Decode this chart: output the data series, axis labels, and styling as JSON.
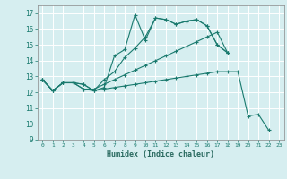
{
  "xlabel": "Humidex (Indice chaleur)",
  "bg_color": "#d6eef0",
  "grid_color": "#ffffff",
  "line_color": "#1a7a6e",
  "xlim": [
    -0.5,
    23.5
  ],
  "ylim": [
    9,
    17.5
  ],
  "yticks": [
    9,
    10,
    11,
    12,
    13,
    14,
    15,
    16,
    17
  ],
  "xticks": [
    0,
    1,
    2,
    3,
    4,
    5,
    6,
    7,
    8,
    9,
    10,
    11,
    12,
    13,
    14,
    15,
    16,
    17,
    18,
    19,
    20,
    21,
    22,
    23
  ],
  "series1_x": [
    0,
    1,
    2,
    3,
    4,
    5,
    6,
    7,
    8,
    9,
    10,
    11,
    12,
    13,
    14,
    15,
    16,
    17,
    18
  ],
  "series1_y": [
    12.8,
    12.1,
    12.6,
    12.6,
    12.5,
    12.1,
    12.3,
    14.3,
    14.7,
    16.9,
    15.3,
    16.7,
    16.6,
    16.3,
    16.5,
    16.6,
    16.2,
    15.0,
    14.5
  ],
  "series2_x": [
    0,
    1,
    2,
    3,
    4,
    5,
    6,
    7,
    8,
    9,
    10,
    11,
    12,
    13,
    14,
    15,
    16,
    17,
    18
  ],
  "series2_y": [
    12.8,
    12.1,
    12.6,
    12.6,
    12.5,
    12.1,
    12.8,
    13.3,
    14.2,
    14.8,
    15.5,
    16.7,
    16.6,
    16.3,
    16.5,
    16.6,
    16.2,
    15.0,
    14.5
  ],
  "series3_x": [
    0,
    1,
    2,
    3,
    4,
    5,
    6,
    7,
    8,
    9,
    10,
    11,
    12,
    13,
    14,
    15,
    16,
    17,
    18
  ],
  "series3_y": [
    12.8,
    12.1,
    12.6,
    12.6,
    12.2,
    12.2,
    12.5,
    12.8,
    13.1,
    13.4,
    13.7,
    14.0,
    14.3,
    14.6,
    14.9,
    15.2,
    15.5,
    15.8,
    14.5
  ],
  "series4_x": [
    0,
    1,
    2,
    3,
    4,
    5,
    6,
    7,
    8,
    9,
    10,
    11,
    12,
    13,
    14,
    15,
    16,
    17,
    18,
    19,
    20,
    21,
    22
  ],
  "series4_y": [
    12.8,
    12.1,
    12.6,
    12.6,
    12.2,
    12.1,
    12.2,
    12.3,
    12.4,
    12.5,
    12.6,
    12.7,
    12.8,
    12.9,
    13.0,
    13.1,
    13.2,
    13.3,
    13.3,
    13.3,
    10.5,
    10.6,
    9.6
  ]
}
